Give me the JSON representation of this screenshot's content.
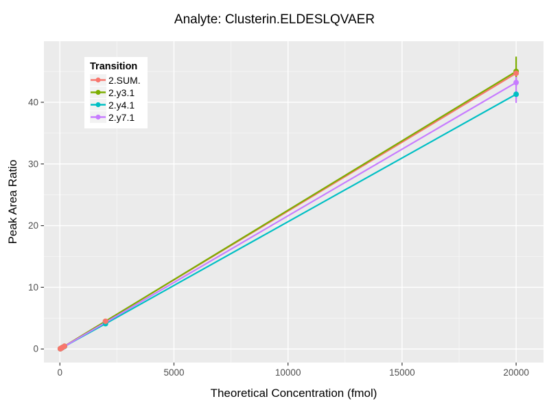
{
  "title": "Analyte: Clusterin.ELDESLQVAER",
  "colors": {
    "panel_background": "#EBEBEB",
    "grid_major": "#FFFFFF",
    "grid_minor": "#F7F7F7",
    "tick_mark": "#333333",
    "tick_label": "#4D4D4D",
    "page_background": "#FFFFFF"
  },
  "chart_data": {
    "type": "line",
    "title": "Analyte: Clusterin.ELDESLQVAER",
    "xlabel": "Theoretical Concentration (fmol)",
    "ylabel": "Peak Area Ratio",
    "xlim": [
      -700,
      21200
    ],
    "ylim": [
      -2.2,
      49.9
    ],
    "x_ticks": [
      0,
      5000,
      10000,
      15000,
      20000
    ],
    "y_ticks": [
      0,
      10,
      20,
      30,
      40
    ],
    "x_minor_ticks": [
      2500,
      7500,
      12500,
      17500
    ],
    "y_minor_ticks": [
      5,
      15,
      25,
      35,
      45
    ],
    "grid": true,
    "legend_title": "Transition",
    "legend_position": "top-left-inside",
    "x": [
      20,
      50,
      100,
      200,
      2000,
      20000
    ],
    "series": [
      {
        "name": "2.SUM.",
        "color": "#F8766D",
        "values": [
          0.04,
          0.11,
          0.22,
          0.45,
          4.5,
          44.7
        ],
        "error_bar": {
          "x": 20000,
          "low": 44.0,
          "high": 45.4
        }
      },
      {
        "name": "2.y3.1",
        "color": "#7CAE00",
        "values": [
          0.05,
          0.11,
          0.23,
          0.45,
          4.5,
          45.0
        ],
        "error_bar": {
          "x": 20000,
          "low": 42.6,
          "high": 47.4
        }
      },
      {
        "name": "2.y4.1",
        "color": "#00BFC4",
        "values": [
          0.04,
          0.1,
          0.21,
          0.41,
          4.1,
          41.3
        ],
        "error_bar": {
          "x": 20000,
          "low": 40.6,
          "high": 41.9
        }
      },
      {
        "name": "2.y7.1",
        "color": "#C77CFF",
        "values": [
          0.04,
          0.11,
          0.22,
          0.43,
          4.3,
          43.2
        ],
        "error_bar": {
          "x": 20000,
          "low": 39.9,
          "high": 44.1
        }
      }
    ]
  }
}
